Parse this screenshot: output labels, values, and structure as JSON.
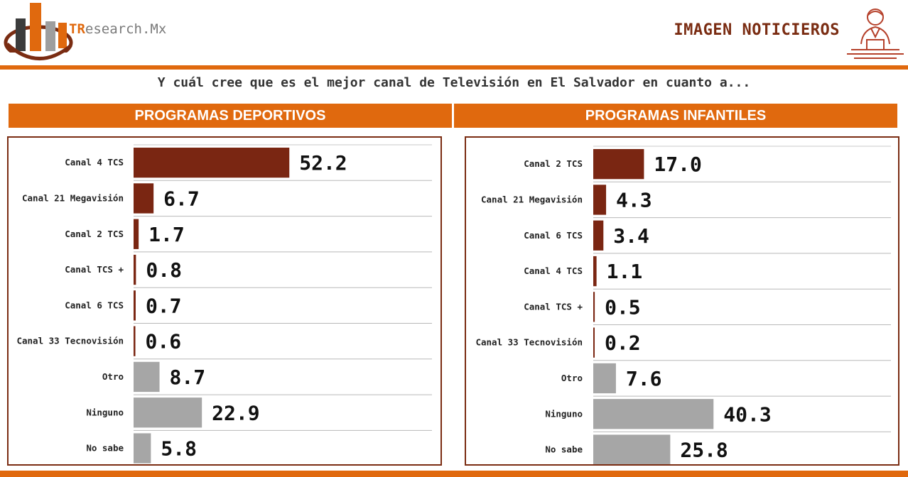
{
  "brand": {
    "logo_prefix": "TR",
    "logo_rest": "esearch.Mx",
    "title": "IMAGEN NOTICIEROS"
  },
  "question": "Y cuál cree que es el mejor canal de Televisión en El Salvador en cuanto a...",
  "colors": {
    "accent": "#e0690e",
    "dark_bar": "#7a2612",
    "gray_bar": "#a6a6a6",
    "border": "#7a2c12"
  },
  "chart_data": [
    {
      "type": "bar",
      "orientation": "horizontal",
      "title": "PROGRAMAS DEPORTIVOS",
      "categories": [
        "Canal 4 TCS",
        "Canal 21 Megavisión",
        "Canal 2 TCS",
        "Canal TCS +",
        "Canal 6 TCS",
        "Canal 33 Tecnovisión",
        "Otro",
        "Ninguno",
        "No sabe"
      ],
      "values": [
        52.2,
        6.7,
        1.7,
        0.8,
        0.7,
        0.6,
        8.7,
        22.9,
        5.8
      ],
      "labels": [
        "52.2",
        "6.7",
        "1.7",
        "0.8",
        "0.7",
        "0.6",
        "8.7",
        "22.9",
        "5.8"
      ],
      "bar_colors": [
        "dark",
        "dark",
        "dark",
        "dark",
        "dark",
        "dark",
        "gray",
        "gray",
        "gray"
      ]
    },
    {
      "type": "bar",
      "orientation": "horizontal",
      "title": "PROGRAMAS INFANTILES",
      "categories": [
        "Canal 2 TCS",
        "Canal 21 Megavisión",
        "Canal 6 TCS",
        "Canal 4 TCS",
        "Canal TCS +",
        "Canal 33 Tecnovisión",
        "Otro",
        "Ninguno",
        "No sabe"
      ],
      "values": [
        17.0,
        4.3,
        3.4,
        1.1,
        0.5,
        0.2,
        7.6,
        40.3,
        25.8
      ],
      "labels": [
        "17.0",
        "4.3",
        "3.4",
        "1.1",
        "0.5",
        "0.2",
        "7.6",
        "40.3",
        "25.8"
      ],
      "bar_colors": [
        "dark",
        "dark",
        "dark",
        "dark",
        "dark",
        "dark",
        "gray",
        "gray",
        "gray"
      ]
    }
  ]
}
